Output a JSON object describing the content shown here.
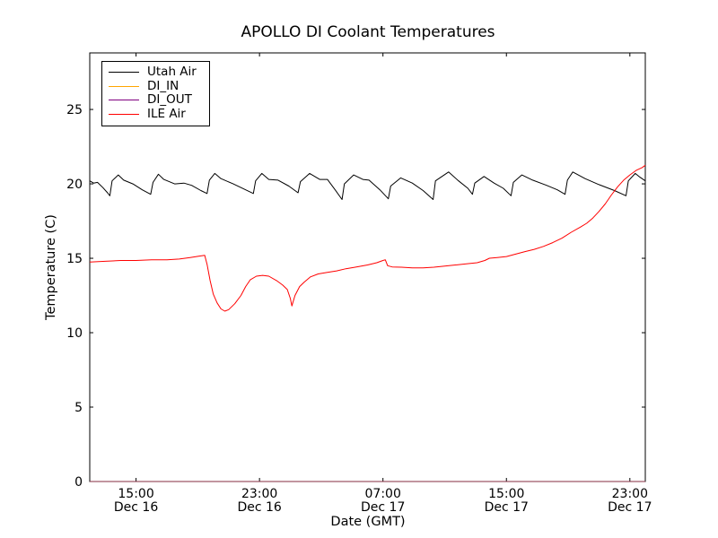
{
  "chart_data": {
    "type": "line",
    "title": "APOLLO DI Coolant Temperatures",
    "xlabel": "Date (GMT)",
    "ylabel": "Temperature (C)",
    "x_unit": "hours since Dec 16 12:00 GMT",
    "xlim": [
      0,
      36
    ],
    "ylim": [
      0,
      28.8
    ],
    "grid": false,
    "legend_position": "upper left",
    "background_color": "#ffffff",
    "axis_color": "#000000",
    "yticks": [
      0,
      5,
      10,
      15,
      20,
      25
    ],
    "xticks": [
      {
        "t": 3,
        "time": "15:00",
        "date": "Dec 16"
      },
      {
        "t": 11,
        "time": "23:00",
        "date": "Dec 16"
      },
      {
        "t": 19,
        "time": "07:00",
        "date": "Dec 17"
      },
      {
        "t": 27,
        "time": "15:00",
        "date": "Dec 17"
      },
      {
        "t": 35,
        "time": "23:00",
        "date": "Dec 17"
      }
    ],
    "series": [
      {
        "name": "Utah Air",
        "color": "#000000",
        "points": [
          [
            0,
            20.2
          ],
          [
            0.25,
            20.05
          ],
          [
            0.5,
            20.1
          ],
          [
            0.85,
            19.75
          ],
          [
            1.15,
            19.4
          ],
          [
            1.3,
            19.2
          ],
          [
            1.45,
            20.2
          ],
          [
            1.85,
            20.6
          ],
          [
            2.2,
            20.25
          ],
          [
            2.8,
            20.0
          ],
          [
            3.4,
            19.6
          ],
          [
            3.95,
            19.3
          ],
          [
            4.1,
            20.1
          ],
          [
            4.45,
            20.65
          ],
          [
            4.8,
            20.3
          ],
          [
            5.5,
            20.0
          ],
          [
            6.1,
            20.05
          ],
          [
            6.6,
            19.9
          ],
          [
            7.2,
            19.55
          ],
          [
            7.6,
            19.35
          ],
          [
            7.75,
            20.25
          ],
          [
            8.1,
            20.7
          ],
          [
            8.5,
            20.35
          ],
          [
            9.3,
            20.0
          ],
          [
            10.1,
            19.6
          ],
          [
            10.6,
            19.35
          ],
          [
            10.75,
            20.2
          ],
          [
            11.15,
            20.7
          ],
          [
            11.6,
            20.3
          ],
          [
            12.2,
            20.25
          ],
          [
            12.9,
            19.85
          ],
          [
            13.5,
            19.4
          ],
          [
            13.65,
            20.15
          ],
          [
            14.25,
            20.7
          ],
          [
            14.9,
            20.3
          ],
          [
            15.4,
            20.3
          ],
          [
            15.9,
            19.6
          ],
          [
            16.35,
            18.95
          ],
          [
            16.5,
            20.0
          ],
          [
            17.1,
            20.6
          ],
          [
            17.7,
            20.3
          ],
          [
            18.1,
            20.25
          ],
          [
            18.8,
            19.6
          ],
          [
            19.35,
            19.0
          ],
          [
            19.5,
            19.85
          ],
          [
            20.15,
            20.4
          ],
          [
            20.9,
            20.05
          ],
          [
            21.6,
            19.55
          ],
          [
            22.25,
            18.95
          ],
          [
            22.4,
            20.2
          ],
          [
            23.25,
            20.8
          ],
          [
            23.9,
            20.2
          ],
          [
            24.5,
            19.7
          ],
          [
            24.8,
            19.3
          ],
          [
            24.95,
            20.05
          ],
          [
            25.55,
            20.5
          ],
          [
            26.2,
            20.05
          ],
          [
            26.8,
            19.7
          ],
          [
            27.3,
            19.2
          ],
          [
            27.45,
            20.1
          ],
          [
            28.0,
            20.6
          ],
          [
            28.7,
            20.25
          ],
          [
            29.6,
            19.9
          ],
          [
            30.3,
            19.6
          ],
          [
            30.8,
            19.3
          ],
          [
            30.95,
            20.25
          ],
          [
            31.3,
            20.8
          ],
          [
            32.1,
            20.35
          ],
          [
            33.0,
            19.95
          ],
          [
            34.0,
            19.55
          ],
          [
            34.75,
            19.2
          ],
          [
            34.9,
            20.2
          ],
          [
            35.35,
            20.7
          ],
          [
            35.65,
            20.45
          ],
          [
            36,
            20.2
          ]
        ]
      },
      {
        "name": "DI_IN",
        "color": "#ffa500",
        "points": [
          [
            0,
            0
          ],
          [
            36,
            0
          ]
        ]
      },
      {
        "name": "DI_OUT",
        "color": "#800080",
        "points": [
          [
            0,
            0
          ],
          [
            36,
            0
          ]
        ]
      },
      {
        "name": "ILE Air",
        "color": "#ff0000",
        "points": [
          [
            0,
            14.75
          ],
          [
            1,
            14.8
          ],
          [
            2,
            14.85
          ],
          [
            3,
            14.85
          ],
          [
            4,
            14.9
          ],
          [
            5,
            14.9
          ],
          [
            5.8,
            14.95
          ],
          [
            6.5,
            15.05
          ],
          [
            7.1,
            15.15
          ],
          [
            7.45,
            15.2
          ],
          [
            7.6,
            14.6
          ],
          [
            7.8,
            13.5
          ],
          [
            8.0,
            12.6
          ],
          [
            8.25,
            12.0
          ],
          [
            8.5,
            11.6
          ],
          [
            8.75,
            11.45
          ],
          [
            9.0,
            11.55
          ],
          [
            9.4,
            11.95
          ],
          [
            9.8,
            12.5
          ],
          [
            10.1,
            13.1
          ],
          [
            10.4,
            13.55
          ],
          [
            10.8,
            13.8
          ],
          [
            11.2,
            13.85
          ],
          [
            11.6,
            13.8
          ],
          [
            12.1,
            13.5
          ],
          [
            12.5,
            13.2
          ],
          [
            12.8,
            12.9
          ],
          [
            13.0,
            12.3
          ],
          [
            13.1,
            11.8
          ],
          [
            13.3,
            12.5
          ],
          [
            13.6,
            13.1
          ],
          [
            13.9,
            13.4
          ],
          [
            14.3,
            13.75
          ],
          [
            14.8,
            13.95
          ],
          [
            15.4,
            14.05
          ],
          [
            16.0,
            14.15
          ],
          [
            16.6,
            14.3
          ],
          [
            17.2,
            14.4
          ],
          [
            18.0,
            14.55
          ],
          [
            18.6,
            14.7
          ],
          [
            19.0,
            14.85
          ],
          [
            19.15,
            14.9
          ],
          [
            19.3,
            14.5
          ],
          [
            19.6,
            14.42
          ],
          [
            20.2,
            14.4
          ],
          [
            20.9,
            14.36
          ],
          [
            21.6,
            14.35
          ],
          [
            22.3,
            14.4
          ],
          [
            23.0,
            14.48
          ],
          [
            23.7,
            14.55
          ],
          [
            24.4,
            14.62
          ],
          [
            25.1,
            14.7
          ],
          [
            25.6,
            14.85
          ],
          [
            25.9,
            15.0
          ],
          [
            26.4,
            15.05
          ],
          [
            27.0,
            15.12
          ],
          [
            27.6,
            15.28
          ],
          [
            28.2,
            15.45
          ],
          [
            28.8,
            15.6
          ],
          [
            29.4,
            15.8
          ],
          [
            30.0,
            16.05
          ],
          [
            30.6,
            16.35
          ],
          [
            31.2,
            16.75
          ],
          [
            31.8,
            17.1
          ],
          [
            32.2,
            17.35
          ],
          [
            32.6,
            17.7
          ],
          [
            33.0,
            18.15
          ],
          [
            33.4,
            18.65
          ],
          [
            33.8,
            19.25
          ],
          [
            34.2,
            19.8
          ],
          [
            34.6,
            20.25
          ],
          [
            35.0,
            20.6
          ],
          [
            35.4,
            20.9
          ],
          [
            35.8,
            21.1
          ],
          [
            36,
            21.25
          ]
        ]
      }
    ]
  }
}
